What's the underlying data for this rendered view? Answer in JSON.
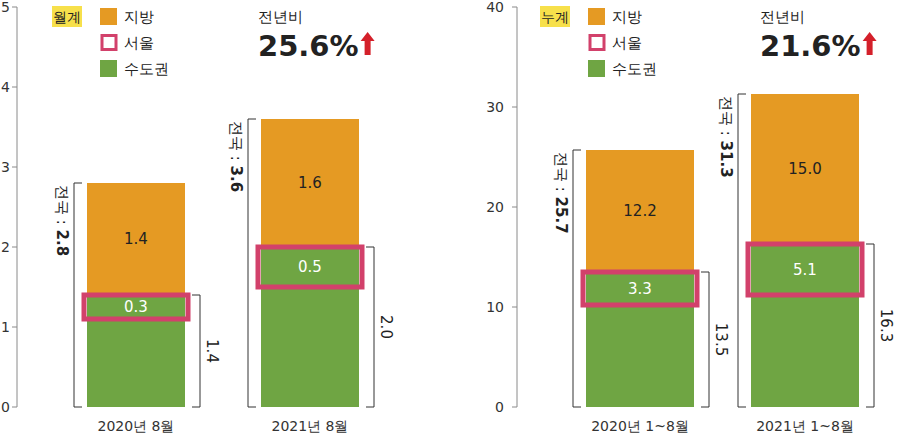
{
  "chart_data": [
    {
      "type": "bar",
      "stacked": true,
      "data_labels": true,
      "legend_title": "월계",
      "categories": [
        "2020년 8월",
        "2021년 8월"
      ],
      "series": [
        {
          "name": "지방",
          "color": "#e59a23",
          "values": [
            1.4,
            1.6
          ]
        },
        {
          "name": "서울",
          "color": "#d2416b",
          "type": "highlight",
          "values": [
            0.3,
            0.5
          ]
        },
        {
          "name": "수도권",
          "color": "#6fa543",
          "values": [
            1.4,
            2.0
          ],
          "value_labels": [
            "1.4",
            "2.0"
          ]
        }
      ],
      "totals": {
        "label": "전국 : ",
        "values": [
          2.8,
          3.6
        ]
      },
      "change": {
        "label": "전년비",
        "value": 25.6,
        "value_label": "25.6%"
      },
      "ylim": [
        0,
        5
      ],
      "yticks": [
        0,
        1,
        2,
        3,
        4,
        5
      ],
      "grid": false
    },
    {
      "type": "bar",
      "stacked": true,
      "data_labels": true,
      "legend_title": "누계",
      "categories": [
        "2020년 1~8월",
        "2021년 1~8월"
      ],
      "series": [
        {
          "name": "지방",
          "color": "#e59a23",
          "values": [
            12.2,
            15.0
          ],
          "value_labels": [
            "12.2",
            "15.0"
          ]
        },
        {
          "name": "서울",
          "color": "#d2416b",
          "type": "highlight",
          "values": [
            3.3,
            5.1
          ]
        },
        {
          "name": "수도권",
          "color": "#6fa543",
          "values": [
            13.5,
            16.3
          ]
        }
      ],
      "totals": {
        "label": "전국 : ",
        "values": [
          25.7,
          31.3
        ]
      },
      "change": {
        "label": "전년비",
        "value": 21.6,
        "value_label": "21.6%"
      },
      "ylim": [
        0,
        40
      ],
      "yticks": [
        0,
        10,
        20,
        30,
        40
      ],
      "grid": false
    }
  ]
}
